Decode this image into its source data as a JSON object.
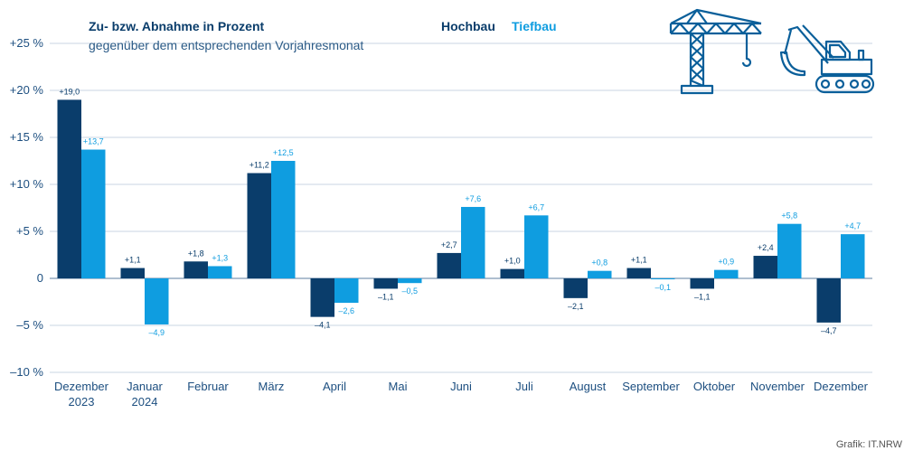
{
  "chart_data": {
    "type": "bar",
    "title": "Zu- bzw. Abnahme in Prozent",
    "subtitle": "gegenüber dem entsprechenden Vorjahresmonat",
    "categories": [
      [
        "Dezember",
        "2023"
      ],
      [
        "Januar",
        "2024"
      ],
      [
        "Februar"
      ],
      [
        "März"
      ],
      [
        "April"
      ],
      [
        "Mai"
      ],
      [
        "Juni"
      ],
      [
        "Juli"
      ],
      [
        "August"
      ],
      [
        "September"
      ],
      [
        "Oktober"
      ],
      [
        "November"
      ],
      [
        "Dezember"
      ]
    ],
    "series": [
      {
        "name": "Hochbau",
        "color": "#0a3d6b",
        "values": [
          19.0,
          1.1,
          1.8,
          11.2,
          -4.1,
          -1.1,
          2.7,
          1.0,
          -2.1,
          1.1,
          -1.1,
          2.4,
          -4.7
        ],
        "labels": [
          "+19,0",
          "+1,1",
          "+1,8",
          "+11,2",
          "–4,1",
          "–1,1",
          "+2,7",
          "+1,0",
          "–2,1",
          "+1,1",
          "–1,1",
          "+2,4",
          "–4,7"
        ]
      },
      {
        "name": "Tiefbau",
        "color": "#0f9de0",
        "values": [
          13.7,
          -4.9,
          1.3,
          12.5,
          -2.6,
          -0.5,
          7.6,
          6.7,
          0.8,
          -0.1,
          0.9,
          5.8,
          4.7
        ],
        "labels": [
          "+13,7",
          "–4,9",
          "+1,3",
          "+12,5",
          "–2,6",
          "–0,5",
          "+7,6",
          "+6,7",
          "+0,8",
          "–0,1",
          "+0,9",
          "+5,8",
          "+4,7"
        ]
      }
    ],
    "yticks": [
      25,
      20,
      15,
      10,
      5,
      0,
      -5,
      -10
    ],
    "ytick_labels": [
      "+25 %",
      "+20 %",
      "+15 %",
      "+10 %",
      "+5 %",
      "0",
      "–5 %",
      "–10 %"
    ],
    "ylim": [
      -10,
      25
    ],
    "grid": true,
    "legend_position": "top-center",
    "source": "Grafik: IT.NRW",
    "icons": [
      "crane-icon",
      "excavator-icon"
    ]
  }
}
